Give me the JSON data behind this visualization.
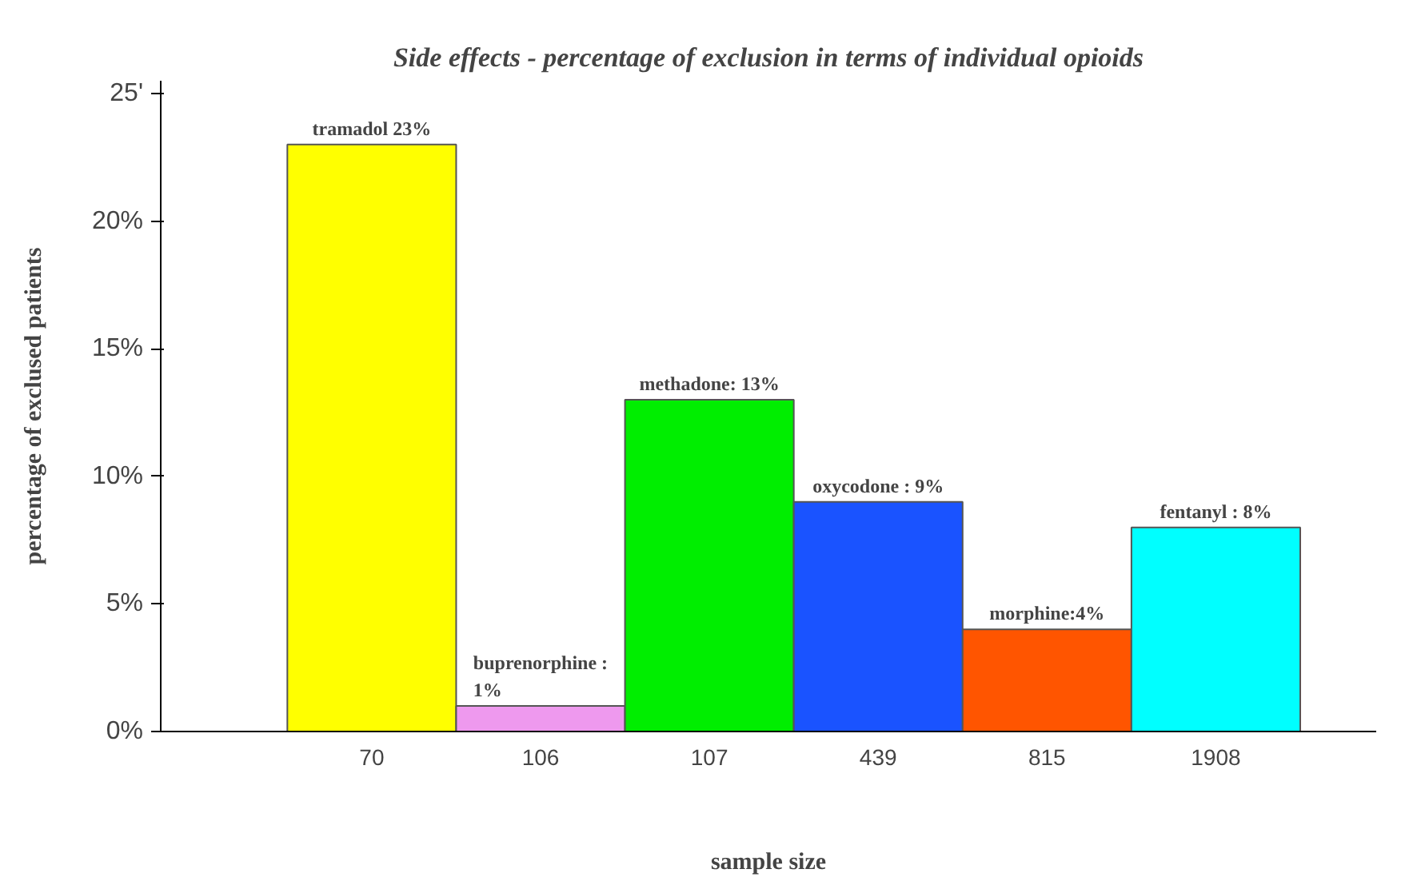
{
  "chart_data": {
    "type": "bar",
    "title": "Side effects - percentage of exclusion in terms of individual opioids",
    "xlabel": "sample size",
    "ylabel": "percentage of exclused patients",
    "categories": [
      "70",
      "106",
      "107",
      "439",
      "815",
      "1908"
    ],
    "values": [
      23,
      1,
      13,
      9,
      4,
      8
    ],
    "colors": [
      "#ffff00",
      "#ee99ee",
      "#00ee00",
      "#1a53ff",
      "#ff5500",
      "#00ffff"
    ],
    "value_labels": [
      "tramadol 23%",
      "buprenorphine : 1%",
      "methadone: 13%",
      "oxycodone : 9%",
      "morphine:4%",
      "fentanyl : 8%"
    ],
    "ylim": [
      0,
      25.5
    ],
    "yticks": [
      {
        "value": 0,
        "label": "0%"
      },
      {
        "value": 5,
        "label": "5%"
      },
      {
        "value": 10,
        "label": "10%"
      },
      {
        "value": 15,
        "label": "15%"
      },
      {
        "value": 20,
        "label": "20%"
      },
      {
        "value": 25,
        "label": "25'"
      }
    ],
    "grid": false
  }
}
